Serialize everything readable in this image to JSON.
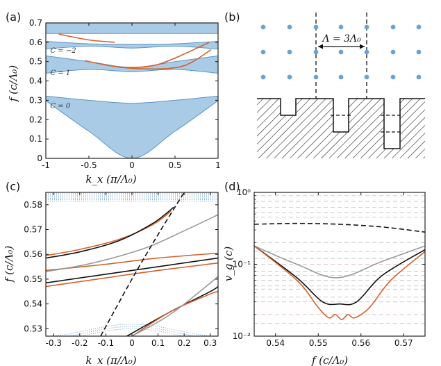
{
  "panels": {
    "a": {
      "label": "(a)",
      "xlabel": "k_x (π/Λ₀)",
      "ylabel": "f (c/Λ₀)",
      "chern": [
        "C = −2",
        "C = 1",
        "C = 0"
      ]
    },
    "b": {
      "label": "(b)",
      "period": "Λ = 3Λ₀"
    },
    "c": {
      "label": "(c)",
      "xlabel": "k_x (π/Λ₀)",
      "ylabel": "f (c/Λ₀)"
    },
    "d": {
      "label": "(d)",
      "xlabel": "f (c/Λ₀)",
      "ylabel": "v_g (c)"
    }
  },
  "colors": {
    "band_fill": "#a9cbe6",
    "band_edge": "#5b95c8",
    "orange": "#d4612c",
    "black": "#111111",
    "gray": "#9a9a9a",
    "dot": "#6aa3d3",
    "pink_dash": "#e2c6c6",
    "gray_dash": "#c8c8c8"
  },
  "chart_data": [
    {
      "type": "area",
      "panel": "a",
      "xlim": [
        -1,
        1
      ],
      "ylim": [
        0,
        0.7
      ],
      "x_ticks": [
        -1,
        -0.5,
        0,
        0.5,
        1
      ],
      "y_ticks": [
        0,
        0.1,
        0.2,
        0.3,
        0.4,
        0.5,
        0.6,
        0.7
      ],
      "x_tick_labels": [
        "-1",
        "-0.5",
        "0",
        "0.5",
        "1"
      ],
      "y_tick_labels": [
        "0",
        "0.1",
        "0.2",
        "0.3",
        "0.4",
        "0.5",
        "0.6",
        "0.7"
      ],
      "bands": [
        {
          "x": [
            -1,
            -0.5,
            0,
            0.5,
            1
          ],
          "lower": [
            0.298,
            0.14,
            0.0,
            0.14,
            0.298
          ],
          "upper": [
            0.322,
            0.3,
            0.285,
            0.3,
            0.322
          ]
        },
        {
          "x": [
            -1,
            -0.5,
            0,
            0.5,
            1
          ],
          "lower": [
            0.44,
            0.46,
            0.448,
            0.46,
            0.44
          ],
          "upper": [
            0.53,
            0.5,
            0.47,
            0.5,
            0.53
          ]
        },
        {
          "x": [
            -1,
            -0.5,
            0,
            0.5,
            1
          ],
          "lower": [
            0.565,
            0.58,
            0.57,
            0.58,
            0.565
          ],
          "upper": [
            0.605,
            0.592,
            0.59,
            0.592,
            0.605
          ]
        },
        {
          "x": [
            -1,
            0,
            1
          ],
          "lower": [
            0.645,
            0.645,
            0.645
          ],
          "upper": [
            0.7,
            0.7,
            0.7
          ]
        }
      ],
      "edge_states": [
        {
          "color": "orange",
          "x": [
            -0.85,
            -0.5,
            -0.2
          ],
          "y": [
            0.642,
            0.612,
            0.6
          ]
        },
        {
          "color": "orange",
          "x": [
            -0.55,
            -0.2,
            0.2,
            0.6,
            0.92
          ],
          "y": [
            0.505,
            0.475,
            0.462,
            0.478,
            0.562
          ]
        },
        {
          "color": "orange",
          "x": [
            -0.15,
            0.3,
            0.9
          ],
          "y": [
            0.47,
            0.485,
            0.6
          ]
        }
      ],
      "annotations": [
        {
          "text": "C = −2",
          "x": -0.98,
          "y": 0.545
        },
        {
          "text": "C = 1",
          "x": -0.98,
          "y": 0.43
        },
        {
          "text": "C = 0",
          "x": -0.98,
          "y": 0.26
        }
      ]
    },
    {
      "type": "line",
      "panel": "c",
      "xlim": [
        -0.33,
        0.33
      ],
      "ylim": [
        0.527,
        0.585
      ],
      "x_ticks": [
        -0.3,
        -0.2,
        -0.1,
        0,
        0.1,
        0.2,
        0.3
      ],
      "y_ticks": [
        0.53,
        0.54,
        0.55,
        0.56,
        0.57,
        0.58
      ],
      "x_tick_labels": [
        "-0.3",
        "-0.2",
        "-0.1",
        "0",
        "0.1",
        "0.2",
        "0.3"
      ],
      "y_tick_labels": [
        "0.53",
        "0.54",
        "0.55",
        "0.56",
        "0.57",
        "0.58"
      ],
      "series": [
        {
          "color": "orange",
          "x": [
            -0.33,
            -0.1,
            0.1,
            0.33
          ],
          "y": [
            0.547,
            0.5505,
            0.5535,
            0.5565
          ]
        },
        {
          "color": "orange",
          "x": [
            -0.33,
            -0.1,
            0.1,
            0.33
          ],
          "y": [
            0.5535,
            0.556,
            0.5585,
            0.5605
          ]
        },
        {
          "color": "black",
          "x": [
            -0.33,
            0,
            0.33
          ],
          "y": [
            0.5485,
            0.5535,
            0.5585
          ]
        },
        {
          "color": "orange",
          "x": [
            -0.33,
            -0.2,
            -0.05,
            0.08,
            0.15
          ],
          "y": [
            0.5595,
            0.562,
            0.566,
            0.572,
            0.5775
          ]
        },
        {
          "color": "black",
          "x": [
            -0.33,
            -0.2,
            -0.05,
            0.08,
            0.16
          ],
          "y": [
            0.5585,
            0.561,
            0.5655,
            0.5725,
            0.579
          ]
        },
        {
          "color": "gray",
          "x": [
            -0.33,
            -0.15,
            0.05,
            0.2,
            0.33
          ],
          "y": [
            0.553,
            0.5565,
            0.5625,
            0.5695,
            0.576
          ]
        },
        {
          "color": "black",
          "x": [
            -0.02,
            0.15,
            0.3,
            0.33
          ],
          "y": [
            0.527,
            0.537,
            0.545,
            0.547
          ]
        },
        {
          "color": "orange",
          "x": [
            0.0,
            0.15,
            0.3,
            0.33
          ],
          "y": [
            0.527,
            0.537,
            0.544,
            0.545
          ]
        },
        {
          "color": "gray",
          "x": [
            0.0,
            0.15,
            0.33
          ],
          "y": [
            0.527,
            0.536,
            0.551
          ]
        },
        {
          "color": "black",
          "dash": true,
          "x": [
            -0.12,
            0.0,
            0.1,
            0.2
          ],
          "y": [
            0.527,
            0.55,
            0.568,
            0.585
          ]
        }
      ]
    },
    {
      "type": "line",
      "panel": "d",
      "xlim": [
        0.535,
        0.575
      ],
      "ylim": [
        0.01,
        1
      ],
      "yscale": "log",
      "x_ticks": [
        0.54,
        0.55,
        0.56,
        0.57
      ],
      "x_tick_labels": [
        "0.54",
        "0.55",
        "0.56",
        "0.57"
      ],
      "y_ticks": [
        0.01,
        0.1,
        1
      ],
      "y_tick_labels": [
        "10⁻²",
        "10⁻¹",
        "10⁰"
      ],
      "series": [
        {
          "color": "black",
          "dash": true,
          "x": [
            0.535,
            0.545,
            0.555,
            0.565,
            0.575
          ],
          "y": [
            0.36,
            0.37,
            0.36,
            0.33,
            0.28
          ]
        },
        {
          "color": "gray",
          "x": [
            0.535,
            0.545,
            0.5545,
            0.565,
            0.575
          ],
          "y": [
            0.18,
            0.1,
            0.065,
            0.11,
            0.18
          ]
        },
        {
          "color": "black",
          "x": [
            0.535,
            0.545,
            0.551,
            0.555,
            0.559,
            0.565,
            0.575
          ],
          "y": [
            0.18,
            0.065,
            0.03,
            0.028,
            0.03,
            0.07,
            0.16
          ]
        },
        {
          "color": "orange",
          "x": [
            0.535,
            0.545,
            0.55,
            0.5525,
            0.554,
            0.5555,
            0.557,
            0.5585,
            0.562,
            0.567,
            0.575
          ],
          "y": [
            0.18,
            0.06,
            0.025,
            0.018,
            0.02,
            0.017,
            0.02,
            0.018,
            0.025,
            0.06,
            0.15
          ]
        }
      ],
      "reference_lines": [
        0.9,
        0.75,
        0.62,
        0.52,
        0.45,
        0.2,
        0.15,
        0.12,
        0.1,
        0.08,
        0.07,
        0.06,
        0.05,
        0.045,
        0.035,
        0.03,
        0.02,
        0.015
      ]
    }
  ]
}
